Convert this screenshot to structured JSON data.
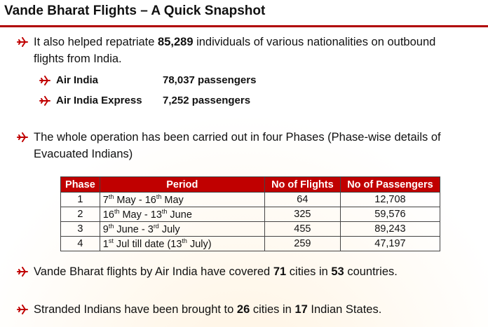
{
  "title": "Vande Bharat Flights – A Quick Snapshot",
  "bullets_top": [
    {
      "parts": [
        {
          "text": "It also helped repatriate "
        },
        {
          "bold": "85,289"
        },
        {
          "text": " individuals of various nationalities on outbound flights from India."
        }
      ],
      "sub": [
        {
          "airline": "Air India",
          "passengers": "78,037 passengers"
        },
        {
          "airline": "Air India Express",
          "passengers": "7,252 passengers"
        }
      ]
    },
    {
      "parts": [
        {
          "text": "The whole operation has been carried out in four Phases (Phase-wise details of Evacuated Indians)"
        }
      ]
    }
  ],
  "table": {
    "header": [
      "Phase",
      "Period",
      "No of Flights",
      "No of Passengers"
    ],
    "rows": [
      [
        "1",
        [
          {
            "text": "7"
          },
          {
            "sup": "th"
          },
          {
            "text": " May - 16"
          },
          {
            "sup": "th"
          },
          {
            "text": " May"
          }
        ],
        "64",
        "12,708"
      ],
      [
        "2",
        [
          {
            "text": "16"
          },
          {
            "sup": "th"
          },
          {
            "text": " May - 13"
          },
          {
            "sup": "th"
          },
          {
            "text": " June"
          }
        ],
        "325",
        "59,576"
      ],
      [
        "3",
        [
          {
            "text": "9"
          },
          {
            "sup": "th"
          },
          {
            "text": " June - 3"
          },
          {
            "sup": "rd"
          },
          {
            "text": " July"
          }
        ],
        "455",
        "89,243"
      ],
      [
        "4",
        [
          {
            "text": "1"
          },
          {
            "sup": "st"
          },
          {
            "text": " Jul till date (13"
          },
          {
            "sup": "th"
          },
          {
            "text": " July)"
          }
        ],
        "259",
        "47,197"
      ]
    ]
  },
  "bullets_bottom": [
    {
      "parts": [
        {
          "text": "Vande Bharat flights by Air India have covered "
        },
        {
          "bold": "71"
        },
        {
          "text": " cities in "
        },
        {
          "bold": "53"
        },
        {
          "text": " countries."
        }
      ]
    },
    {
      "parts": [
        {
          "text": "Stranded Indians have been brought to "
        },
        {
          "bold": "26"
        },
        {
          "text": " cities in "
        },
        {
          "bold": "17"
        },
        {
          "text": " Indian States."
        }
      ]
    }
  ]
}
